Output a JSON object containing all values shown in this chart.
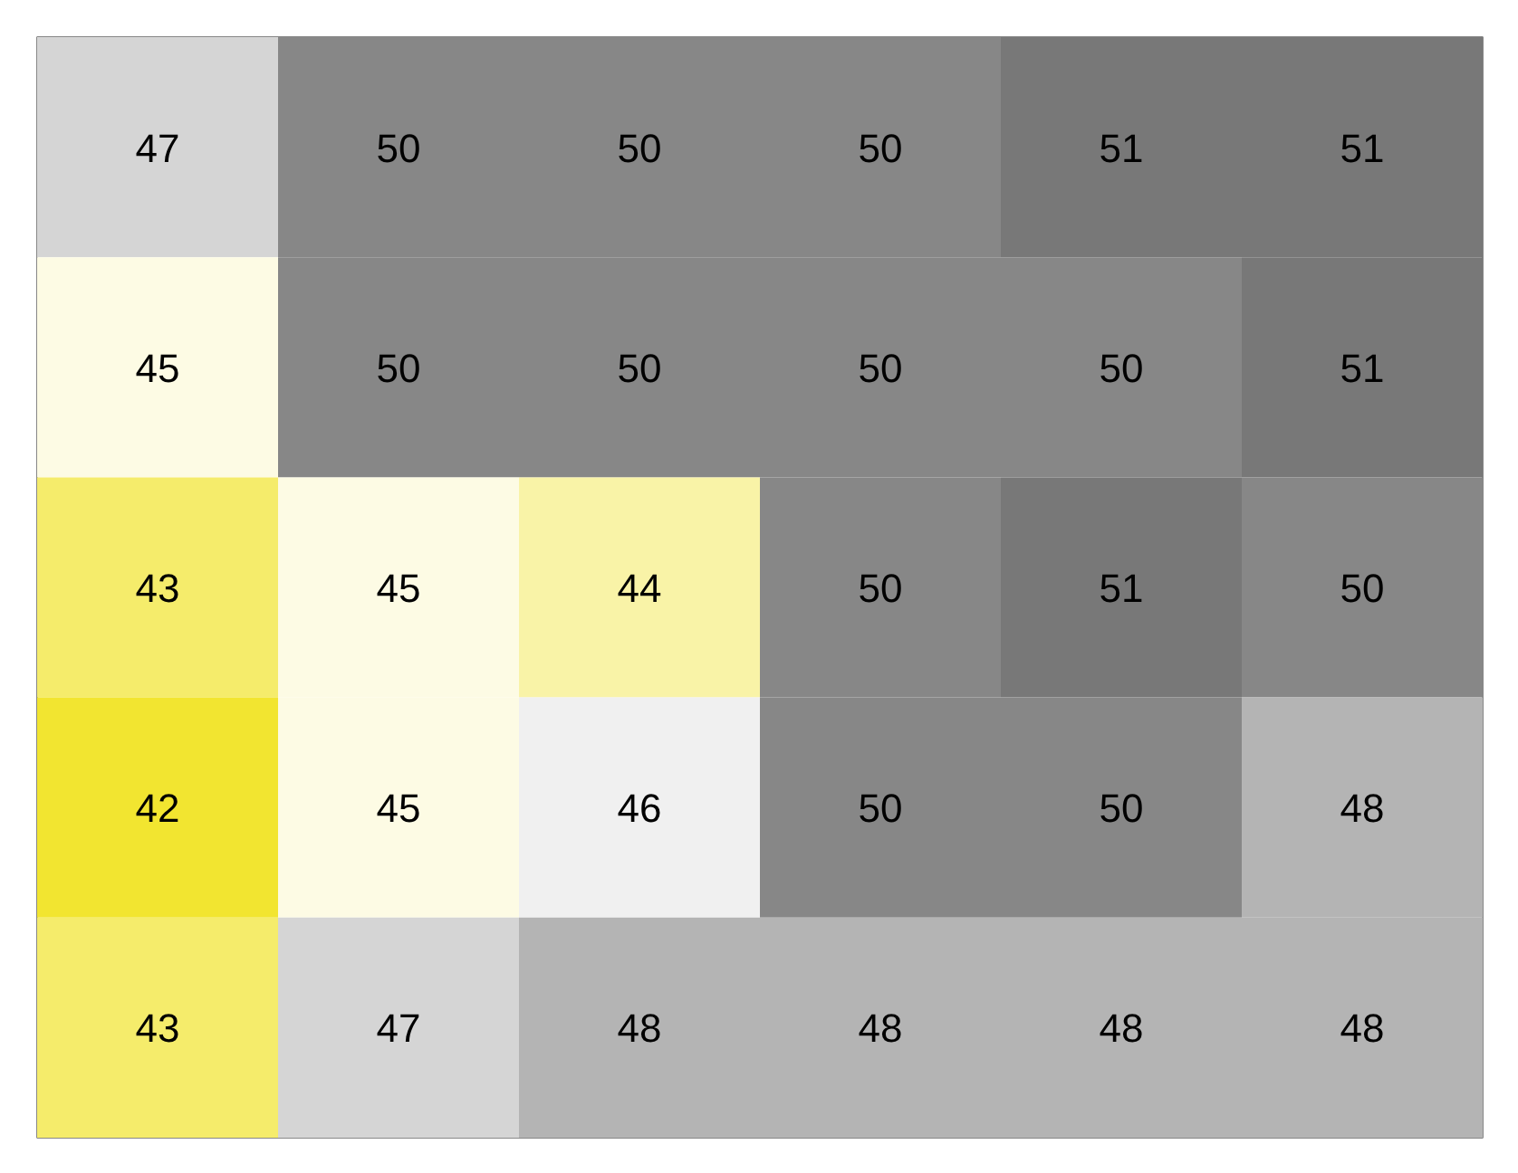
{
  "chart_data": {
    "type": "heatmap",
    "data_labels": true,
    "categories": [
      null,
      null,
      null,
      null,
      null,
      null
    ],
    "y_categories": [
      null,
      null,
      null,
      null,
      null
    ],
    "cells": [
      [
        47,
        50,
        50,
        50,
        51,
        51
      ],
      [
        45,
        50,
        50,
        50,
        50,
        51
      ],
      [
        43,
        45,
        44,
        50,
        51,
        50
      ],
      [
        42,
        45,
        46,
        50,
        50,
        48
      ],
      [
        43,
        47,
        48,
        48,
        48,
        48
      ]
    ]
  }
}
